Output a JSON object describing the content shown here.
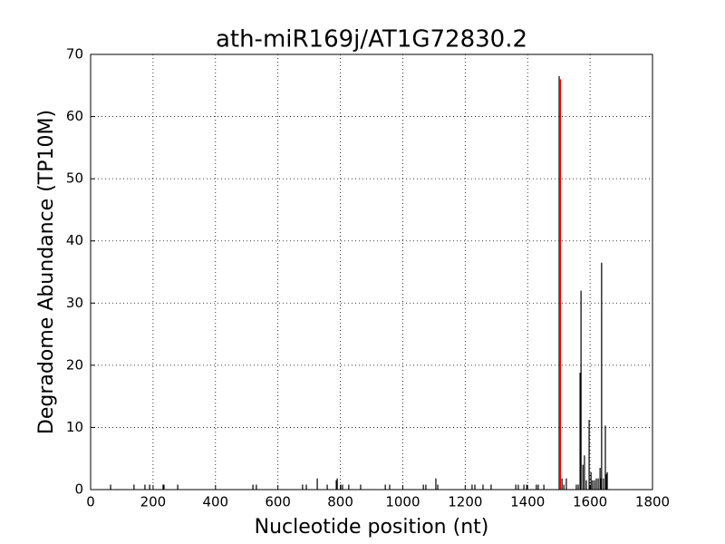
{
  "chart_data": {
    "type": "stem",
    "title": "ath-miR169j/AT1G72830.2",
    "x_label": "Nucleotide position (nt)",
    "y_label": "Degradome Abundance (TP10M)",
    "xlim": [
      0,
      1800
    ],
    "xticks": [
      0,
      200,
      400,
      600,
      800,
      1000,
      1200,
      1400,
      1600,
      1800
    ],
    "ylim": [
      0,
      70
    ],
    "yticks": [
      0,
      10,
      20,
      30,
      40,
      50,
      60,
      70
    ],
    "grid": true,
    "series": [
      {
        "color": "#000000",
        "x": [
          64,
          139,
          174,
          189,
          232,
          235,
          279,
          520,
          531,
          679,
          691,
          726,
          758,
          787,
          790,
          801,
          807,
          827,
          865,
          944,
          958,
          1066,
          1074,
          1106,
          1112,
          1222,
          1231,
          1257,
          1283,
          1362,
          1370,
          1388,
          1397,
          1428,
          1434,
          1452,
          1501,
          1510,
          1516,
          1524,
          1556,
          1562,
          1568,
          1571,
          1577,
          1582,
          1588,
          1597,
          1603,
          1608,
          1614,
          1620,
          1626,
          1632,
          1634,
          1637,
          1643,
          1649,
          1652,
          1655
        ],
        "values": [
          0.8,
          0.8,
          0.8,
          0.8,
          0.8,
          0.8,
          0.8,
          0.8,
          0.8,
          0.8,
          0.8,
          1.8,
          0.8,
          1.5,
          1.8,
          0.8,
          0.8,
          0.8,
          0.8,
          0.8,
          0.8,
          0.8,
          0.8,
          1.8,
          0.8,
          0.8,
          0.8,
          0.8,
          0.8,
          0.8,
          0.8,
          0.8,
          0.8,
          0.8,
          0.8,
          0.8,
          66.5,
          1.8,
          0.8,
          1.8,
          0.8,
          0.8,
          18.8,
          32,
          4,
          5.5,
          1.5,
          11.2,
          2.8,
          1.5,
          1.5,
          1.8,
          1.8,
          3.5,
          1.8,
          36.5,
          1.8,
          10.3,
          2.5,
          2.8
        ]
      },
      {
        "color": "#ff0000",
        "x": [
          1504
        ],
        "values": [
          66
        ]
      }
    ]
  }
}
